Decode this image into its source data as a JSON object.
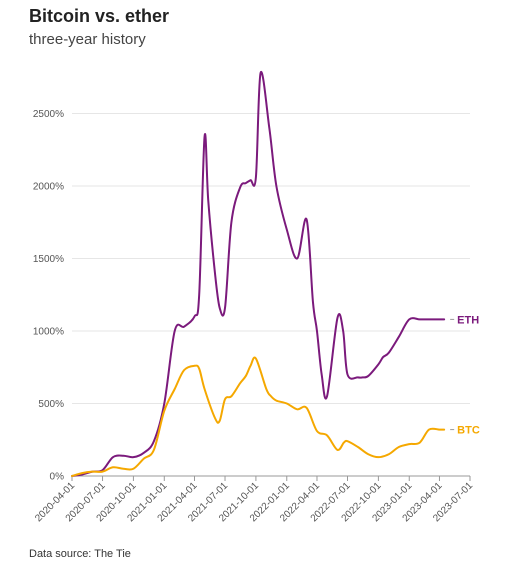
{
  "title": "Bitcoin vs. ether",
  "subtitle": "three-year history",
  "source": "Data source: The Tie",
  "colors": {
    "eth": "#7b1a7c",
    "btc": "#f5a800",
    "grid": "#e6e6e6"
  },
  "chart_data": {
    "type": "line",
    "title": "Bitcoin vs. ether",
    "subtitle": "three-year history",
    "xlabel": "",
    "ylabel": "",
    "ylim": [
      0,
      2800
    ],
    "xlim": [
      "2020-04-01",
      "2023-07-01"
    ],
    "yticks": [
      0,
      500,
      1000,
      1500,
      2000,
      2500
    ],
    "ytick_labels": [
      "0%",
      "500%",
      "1000%",
      "1500%",
      "2000%",
      "2500%"
    ],
    "xticks": [
      "2020-04-01",
      "2020-07-01",
      "2020-10-01",
      "2021-01-01",
      "2021-04-01",
      "2021-07-01",
      "2021-10-01",
      "2022-01-01",
      "2022-04-01",
      "2022-07-01",
      "2022-10-01",
      "2023-01-01",
      "2023-04-01",
      "2023-07-01"
    ],
    "grid": "horizontal",
    "series": [
      {
        "name": "ETH",
        "color": "#7b1a7c",
        "x": [
          "2020-04-01",
          "2020-05-01",
          "2020-06-01",
          "2020-07-01",
          "2020-08-01",
          "2020-09-01",
          "2020-10-01",
          "2020-11-01",
          "2020-12-01",
          "2021-01-01",
          "2021-02-01",
          "2021-03-01",
          "2021-04-01",
          "2021-04-15",
          "2021-05-01",
          "2021-05-12",
          "2021-06-01",
          "2021-06-15",
          "2021-07-01",
          "2021-07-20",
          "2021-08-15",
          "2021-09-01",
          "2021-09-15",
          "2021-10-01",
          "2021-10-15",
          "2021-11-10",
          "2021-12-01",
          "2022-01-01",
          "2022-02-01",
          "2022-03-01",
          "2022-03-20",
          "2022-04-01",
          "2022-04-15",
          "2022-05-01",
          "2022-06-01",
          "2022-06-18",
          "2022-07-01",
          "2022-08-01",
          "2022-08-15",
          "2022-09-01",
          "2022-10-01",
          "2022-10-15",
          "2022-11-01",
          "2022-12-01",
          "2023-01-01",
          "2023-02-01",
          "2023-03-01",
          "2023-04-01",
          "2023-04-15"
        ],
        "values": [
          0,
          10,
          30,
          40,
          130,
          140,
          130,
          160,
          240,
          500,
          1000,
          1030,
          1100,
          1250,
          2340,
          1900,
          1400,
          1160,
          1160,
          1750,
          1990,
          2020,
          2040,
          2060,
          2780,
          2400,
          2000,
          1700,
          1500,
          1770,
          1200,
          1000,
          700,
          550,
          1090,
          1000,
          700,
          680,
          680,
          690,
          770,
          820,
          850,
          960,
          1080,
          1080,
          1080,
          1080,
          1080
        ]
      },
      {
        "name": "BTC",
        "color": "#f5a800",
        "x": [
          "2020-04-01",
          "2020-05-01",
          "2020-06-01",
          "2020-07-01",
          "2020-08-01",
          "2020-09-01",
          "2020-10-01",
          "2020-11-01",
          "2020-12-01",
          "2021-01-01",
          "2021-02-01",
          "2021-03-01",
          "2021-04-01",
          "2021-04-15",
          "2021-05-01",
          "2021-06-01",
          "2021-06-15",
          "2021-07-01",
          "2021-07-20",
          "2021-08-15",
          "2021-09-01",
          "2021-09-15",
          "2021-10-01",
          "2021-11-01",
          "2021-11-15",
          "2021-12-01",
          "2022-01-01",
          "2022-02-01",
          "2022-03-01",
          "2022-04-01",
          "2022-05-01",
          "2022-06-01",
          "2022-06-20",
          "2022-07-01",
          "2022-08-01",
          "2022-09-01",
          "2022-10-01",
          "2022-11-01",
          "2022-12-01",
          "2023-01-01",
          "2023-02-01",
          "2023-03-01",
          "2023-04-01",
          "2023-04-15"
        ],
        "values": [
          0,
          20,
          30,
          30,
          60,
          50,
          50,
          120,
          180,
          450,
          600,
          730,
          760,
          740,
          600,
          400,
          380,
          530,
          550,
          640,
          690,
          760,
          810,
          600,
          550,
          520,
          500,
          460,
          470,
          310,
          280,
          180,
          230,
          240,
          200,
          150,
          130,
          150,
          200,
          220,
          230,
          320,
          320,
          320
        ]
      }
    ]
  }
}
